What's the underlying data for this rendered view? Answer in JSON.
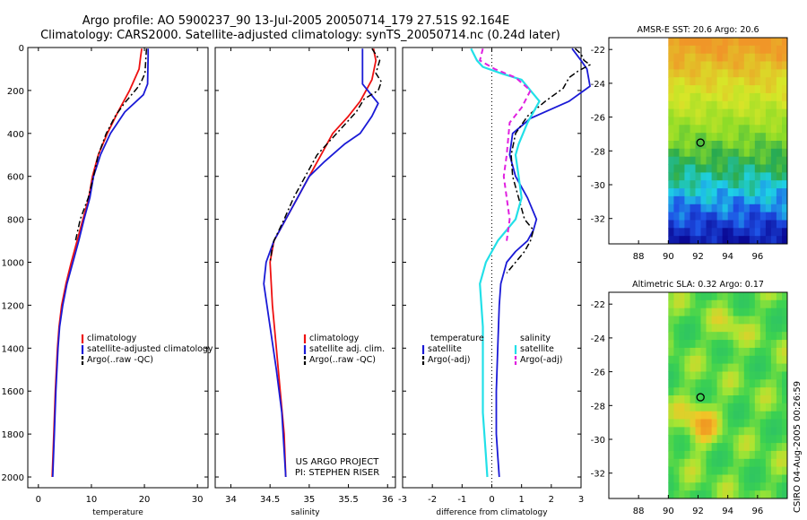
{
  "header": {
    "line1": "Argo profile: AO 5900237_90 13-Jul-2005 20050714_179 27.51S 92.164E",
    "line2": "Climatology: CARS2000. Satellite-adjusted climatology: synTS_20050714.nc (0.24d later)"
  },
  "colors": {
    "climatology": "#ee1111",
    "satellite": "#1a1ad6",
    "argo": "#000000",
    "salinity": "#22e0e8",
    "argo_sal": "#e020e0"
  },
  "chart_data": [
    {
      "type": "line",
      "id": "temp",
      "xlabel": "temperature",
      "ylabel": "",
      "xlim": [
        -2,
        32
      ],
      "ylim": [
        2050,
        0
      ],
      "xticks": [
        0,
        10,
        20,
        30
      ],
      "yticks": [
        0,
        200,
        400,
        600,
        800,
        1000,
        1200,
        1400,
        1600,
        1800,
        2000
      ],
      "legend": [
        "climatology",
        "satellite-adjusted climatology",
        "Argo(..raw -QC)"
      ],
      "series": [
        {
          "name": "climatology",
          "style": "climatology",
          "x": [
            19.5,
            19.3,
            19.0,
            17.2,
            15.0,
            13.0,
            11.3,
            10.2,
            9.5,
            8.4,
            7.3,
            6.2,
            5.2,
            4.4,
            3.9,
            3.6,
            3.2,
            2.9,
            2.6
          ],
          "y": [
            5,
            40,
            100,
            200,
            300,
            400,
            500,
            600,
            700,
            800,
            900,
            1000,
            1100,
            1200,
            1300,
            1400,
            1600,
            1800,
            2000
          ]
        },
        {
          "name": "satellite-adjusted climatology",
          "style": "satellite",
          "x": [
            20.7,
            20.7,
            20.6,
            19.8,
            16.3,
            13.6,
            11.7,
            10.4,
            9.7,
            8.6,
            7.6,
            6.5,
            5.4,
            4.6,
            4.0,
            3.7,
            3.3,
            3.0,
            2.7
          ],
          "y": [
            5,
            40,
            170,
            220,
            300,
            400,
            500,
            600,
            700,
            800,
            900,
            1000,
            1100,
            1200,
            1300,
            1400,
            1600,
            1800,
            2000
          ]
        },
        {
          "name": "Argo(..raw -QC)",
          "style": "argo",
          "x": [
            20.4,
            20.3,
            20.1,
            19.4,
            18.6,
            16.2,
            14.5,
            12.8,
            11.3,
            10.4,
            9.4,
            7.9,
            7.0
          ],
          "y": [
            5,
            40,
            120,
            160,
            190,
            260,
            320,
            400,
            500,
            600,
            700,
            800,
            900
          ]
        }
      ]
    },
    {
      "type": "line",
      "id": "sal",
      "xlabel": "salinity",
      "ylabel": "",
      "xlim": [
        33.8,
        36.1
      ],
      "ylim": [
        2050,
        0
      ],
      "xticks": [
        34,
        34.5,
        35,
        35.5,
        36
      ],
      "yticks": [
        0,
        200,
        400,
        600,
        800,
        1000,
        1200,
        1400,
        1600,
        1800,
        2000
      ],
      "legend": [
        "climatology",
        "satellite adj. clim.",
        "Argo(..raw -QC)"
      ],
      "series": [
        {
          "name": "climatology",
          "style": "climatology",
          "x": [
            35.82,
            35.85,
            35.8,
            35.65,
            35.5,
            35.3,
            35.15,
            35.0,
            34.85,
            34.7,
            34.55,
            34.5,
            34.53,
            34.58,
            34.63,
            34.68,
            34.7
          ],
          "y": [
            5,
            60,
            150,
            250,
            320,
            400,
            500,
            600,
            700,
            800,
            900,
            1000,
            1200,
            1400,
            1600,
            1800,
            2000
          ]
        },
        {
          "name": "satellite adj. clim.",
          "style": "satellite",
          "x": [
            35.68,
            35.68,
            35.88,
            35.8,
            35.65,
            35.45,
            35.2,
            35.0,
            34.85,
            34.7,
            34.55,
            34.45,
            34.42,
            34.5,
            34.58,
            34.65,
            34.7
          ],
          "y": [
            5,
            170,
            260,
            320,
            400,
            450,
            530,
            600,
            700,
            800,
            900,
            1000,
            1100,
            1300,
            1500,
            1700,
            2000
          ]
        },
        {
          "name": "Argo(..raw -QC)",
          "style": "argo",
          "x": [
            35.8,
            35.9,
            35.85,
            35.92,
            35.88,
            35.7,
            35.6,
            35.45,
            35.25,
            35.1,
            34.95,
            34.8,
            34.68,
            34.55,
            34.52,
            34.5
          ],
          "y": [
            5,
            60,
            120,
            160,
            200,
            240,
            300,
            360,
            440,
            500,
            600,
            700,
            800,
            900,
            950,
            1000
          ]
        }
      ]
    },
    {
      "type": "line",
      "id": "diff",
      "xlabel": "difference from climatology",
      "ylabel": "",
      "xlim": [
        -3,
        3
      ],
      "ylim": [
        2050,
        0
      ],
      "xticks": [
        -3,
        -2,
        -1,
        0,
        1,
        2,
        3
      ],
      "yticks": [
        0,
        200,
        400,
        600,
        800,
        1000,
        1200,
        1400,
        1600,
        1800,
        2000
      ],
      "legend_left": {
        "title": "temperature",
        "items": [
          "satellite",
          "Argo(-adj)"
        ]
      },
      "legend_right": {
        "title": "salinity",
        "items": [
          "satellite",
          "Argo(-adj)"
        ]
      },
      "series": [
        {
          "name": "temperature satellite",
          "style": "satellite",
          "x": [
            2.7,
            3.0,
            3.2,
            3.3,
            2.6,
            1.3,
            0.7,
            0.6,
            0.8,
            1.2,
            1.5,
            1.4,
            1.2,
            0.8,
            0.5,
            0.3,
            0.25,
            0.2,
            0.15,
            0.15,
            0.2,
            0.25
          ],
          "y": [
            5,
            60,
            100,
            180,
            250,
            330,
            400,
            500,
            600,
            700,
            800,
            850,
            900,
            950,
            1000,
            1100,
            1200,
            1400,
            1600,
            1800,
            1900,
            2000
          ]
        },
        {
          "name": "temperature Argo(-adj)",
          "style": "argo",
          "x": [
            2.8,
            3.0,
            3.1,
            3.3,
            2.9,
            2.6,
            2.4,
            1.8,
            1.2,
            0.8,
            0.65,
            0.7,
            0.9,
            1.1,
            1.4,
            1.3,
            1.1,
            0.8,
            0.5
          ],
          "y": [
            5,
            30,
            60,
            80,
            110,
            140,
            190,
            250,
            320,
            400,
            500,
            600,
            700,
            800,
            850,
            900,
            950,
            1000,
            1050
          ]
        },
        {
          "name": "salinity satellite",
          "style": "salinity",
          "x": [
            -0.7,
            -0.5,
            -0.3,
            0.3,
            1.0,
            1.6,
            1.2,
            0.9,
            0.8,
            0.9,
            1.0,
            0.8,
            0.2,
            -0.2,
            -0.4,
            -0.3,
            -0.3,
            -0.3,
            -0.2,
            -0.15
          ],
          "y": [
            5,
            60,
            90,
            120,
            150,
            250,
            350,
            450,
            500,
            600,
            700,
            800,
            900,
            1000,
            1100,
            1300,
            1500,
            1700,
            1900,
            2000
          ]
        },
        {
          "name": "salinity Argo(-adj)",
          "style": "argo_sal",
          "x": [
            -0.3,
            -0.4,
            0.1,
            0.8,
            1.3,
            1.0,
            0.6,
            0.5,
            0.4,
            0.5,
            0.6,
            0.5
          ],
          "y": [
            5,
            60,
            100,
            140,
            200,
            280,
            350,
            500,
            600,
            700,
            800,
            900
          ]
        }
      ]
    }
  ],
  "maps": [
    {
      "title": "AMSR-E SST: 20.6 Argo: 20.6",
      "xticks": [
        "88",
        "90",
        "92",
        "94",
        "96"
      ],
      "yticks": [
        "-22",
        "-24",
        "-26",
        "-28",
        "-30",
        "-32"
      ],
      "palette": "sst",
      "marker": {
        "lon": 92.164,
        "lat": -27.51
      }
    },
    {
      "title": "Altimetric SLA: 0.32 Argo: 0.17",
      "xticks": [
        "88",
        "90",
        "92",
        "94",
        "96"
      ],
      "yticks": [
        "-22",
        "-24",
        "-26",
        "-28",
        "-30",
        "-32"
      ],
      "palette": "sla",
      "marker": {
        "lon": 92.164,
        "lat": -27.51
      }
    }
  ],
  "annotations": {
    "project_line1": "US ARGO PROJECT",
    "project_line2": "PI: STEPHEN RISER",
    "side_credit": "CSIRO 04-Aug-2005 00:26:59"
  }
}
